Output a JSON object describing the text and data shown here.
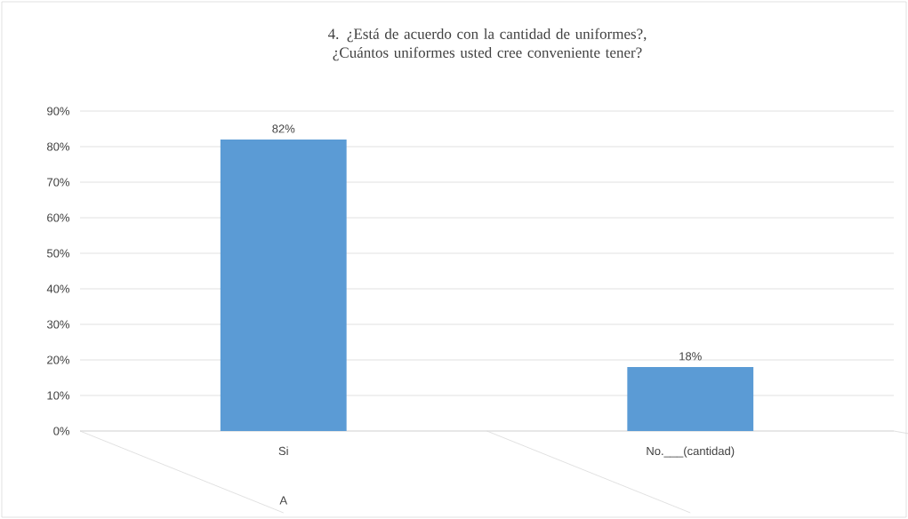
{
  "chart_data": {
    "type": "bar",
    "title": "4. ¿Está de acuerdo con la cantidad de uniformes?, ¿Cuántos uniformes usted cree conveniente tener?",
    "categories": [
      "Si",
      "No.___(cantidad)"
    ],
    "values": [
      82,
      18
    ],
    "value_labels": [
      "82%",
      "18%"
    ],
    "color": "#5b9bd5",
    "ylim": [
      0,
      90
    ],
    "yticks": [
      {
        "value": 0,
        "label": "0%"
      },
      {
        "value": 10,
        "label": "10%"
      },
      {
        "value": 20,
        "label": "20%"
      },
      {
        "value": 30,
        "label": "30%"
      },
      {
        "value": 40,
        "label": "40%"
      },
      {
        "value": 50,
        "label": "50%"
      },
      {
        "value": 60,
        "label": "60%"
      },
      {
        "value": 70,
        "label": "70%"
      },
      {
        "value": 80,
        "label": "80%"
      },
      {
        "value": 90,
        "label": "90%"
      }
    ],
    "grid": "y",
    "annotations": [
      "A"
    ]
  }
}
